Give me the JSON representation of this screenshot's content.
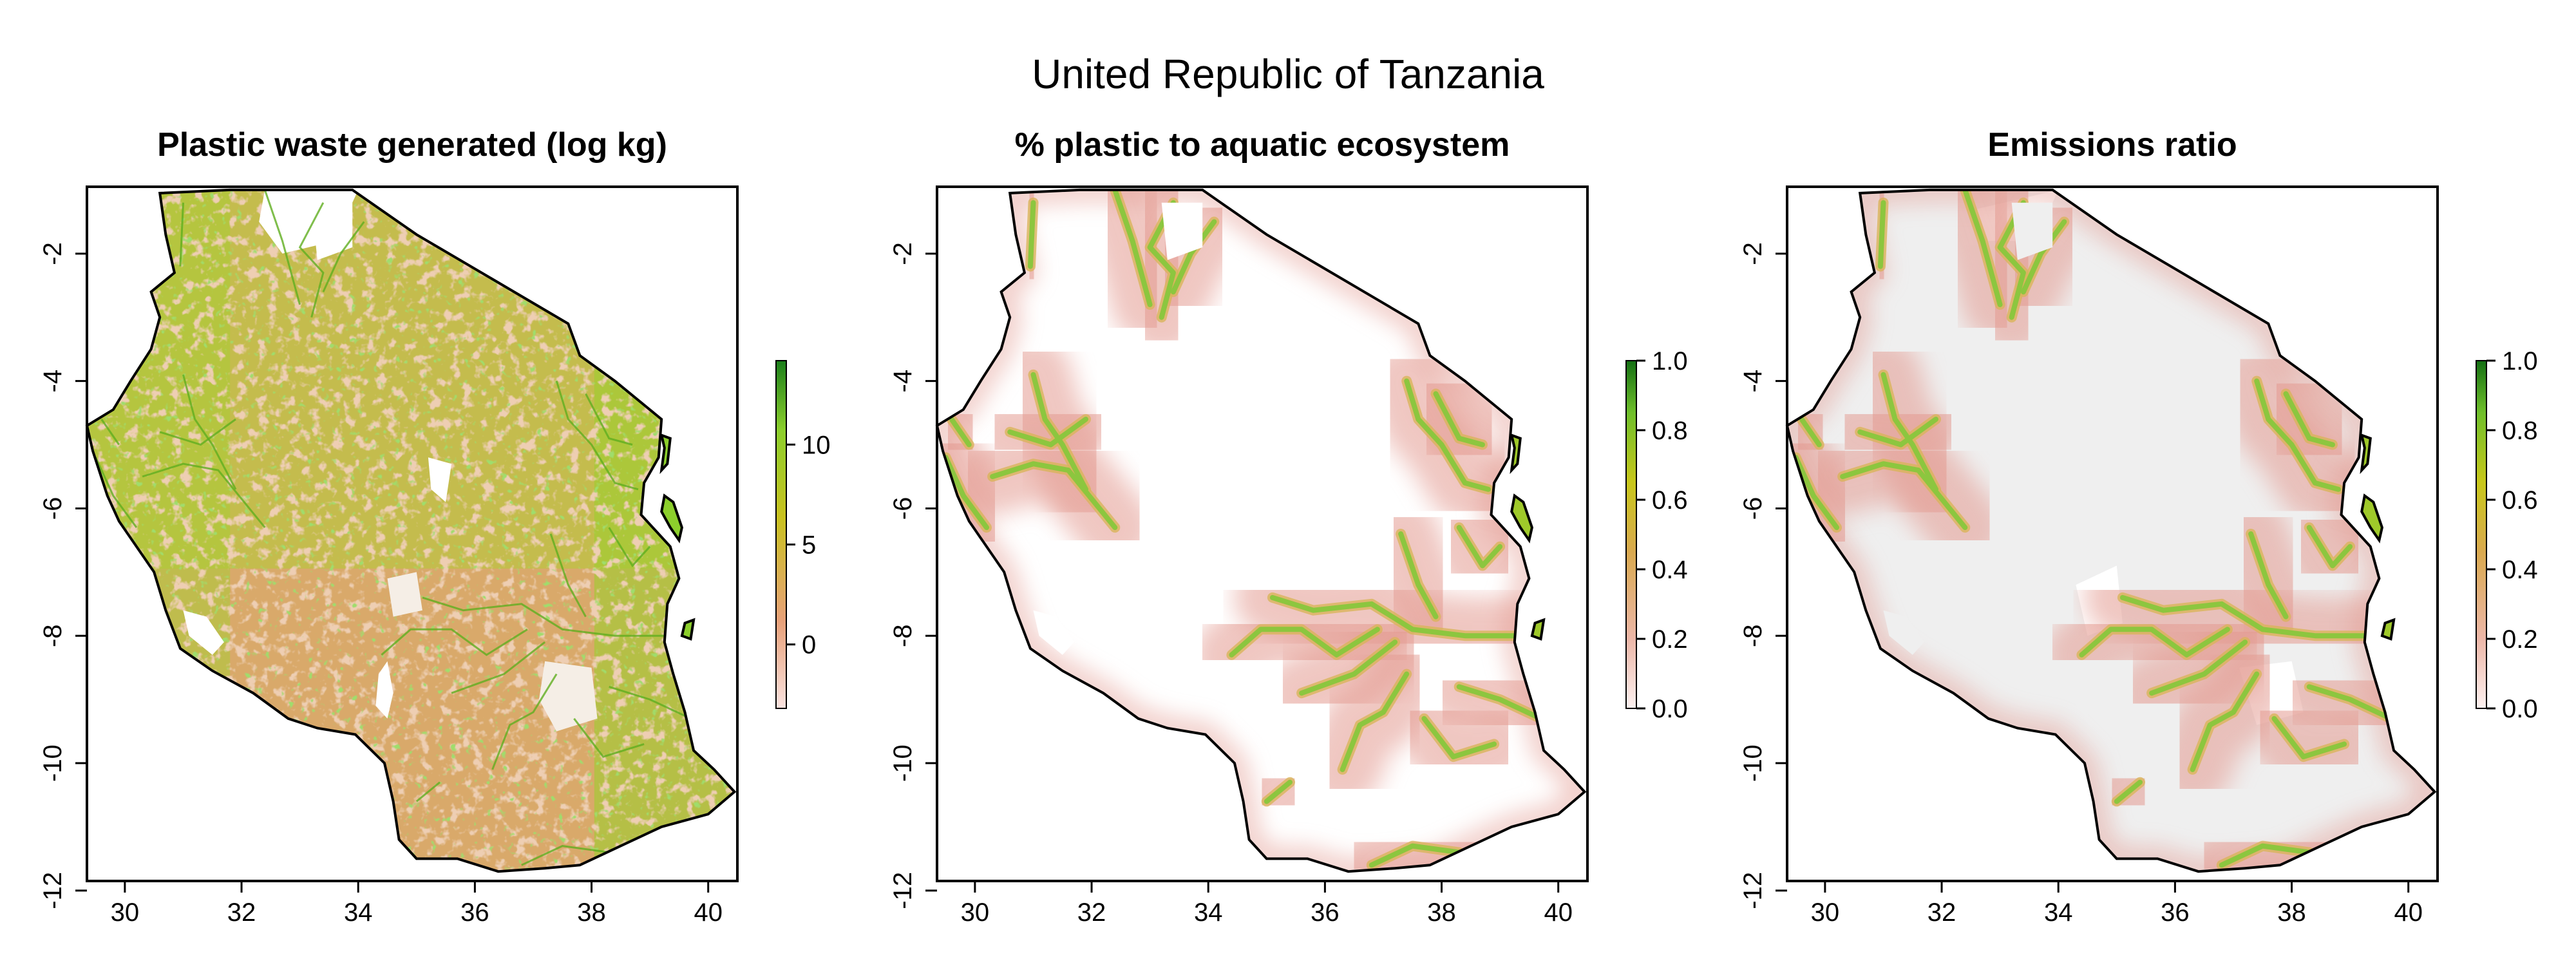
{
  "main_title": "United Republic of Tanzania",
  "colors": {
    "waste_low": "#f2b3ae",
    "waste_mid": "#d7a86c",
    "waste_high": "#9fd12c",
    "waste_top": "#1b7f1b",
    "river": "#8cc63f",
    "buffer": "#e39a90",
    "emission_bg": "#efefef",
    "land_outline": "#000000"
  },
  "panels": [
    {
      "title": "Plastic waste generated (log kg)",
      "x_ticks": [
        "30",
        "32",
        "34",
        "36",
        "38",
        "40"
      ],
      "y_ticks": [
        "-2",
        "-4",
        "-6",
        "-8",
        "-10",
        "-12"
      ],
      "legend_ticks": [
        "10",
        "5",
        "0"
      ],
      "legend_gradient": "waste"
    },
    {
      "title": "% plastic to aquatic ecosystem",
      "x_ticks": [
        "30",
        "32",
        "34",
        "36",
        "38",
        "40"
      ],
      "y_ticks": [
        "-2",
        "-4",
        "-6",
        "-8",
        "-10",
        "-12"
      ],
      "legend_ticks": [
        "1.0",
        "0.8",
        "0.6",
        "0.4",
        "0.2",
        "0.0"
      ],
      "legend_gradient": "fraction"
    },
    {
      "title": "Emissions ratio",
      "x_ticks": [
        "30",
        "32",
        "34",
        "36",
        "38",
        "40"
      ],
      "y_ticks": [
        "-2",
        "-4",
        "-6",
        "-8",
        "-10",
        "-12"
      ],
      "legend_ticks": [
        "1.0",
        "0.8",
        "0.6",
        "0.4",
        "0.2",
        "0.0"
      ],
      "legend_gradient": "fraction"
    }
  ]
}
